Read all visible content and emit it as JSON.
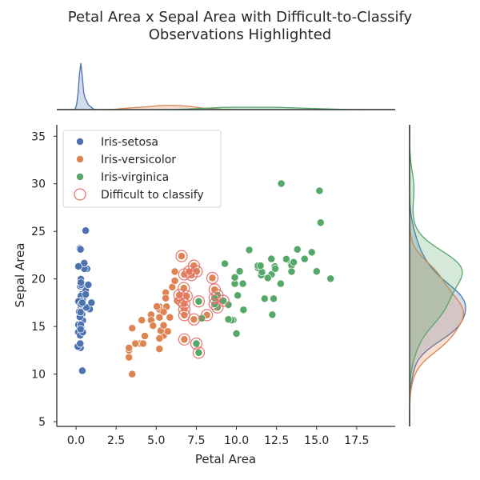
{
  "chart_data": {
    "type": "scatter",
    "title_line1": "Petal Area x Sepal Area with Difficult-to-Classify",
    "title_line2": "Observations Highlighted",
    "xlabel": "Petal Area",
    "ylabel": "Sepal Area",
    "xlim": [
      -1.2,
      19.9
    ],
    "ylim": [
      4.5,
      36.2
    ],
    "xticks": [
      0.0,
      2.5,
      5.0,
      7.5,
      10.0,
      12.5,
      15.0,
      17.5
    ],
    "yticks": [
      5,
      10,
      15,
      20,
      25,
      30,
      35
    ],
    "legend_position": "top-left",
    "series": [
      {
        "name": "Iris-setosa",
        "color": "#4c72b0",
        "points": [
          [
            0.28,
            17.85
          ],
          [
            0.28,
            14.7
          ],
          [
            0.26,
            15.04
          ],
          [
            0.3,
            14.26
          ],
          [
            0.28,
            18.0
          ],
          [
            0.68,
            21.06
          ],
          [
            0.42,
            15.64
          ],
          [
            0.3,
            17.0
          ],
          [
            0.28,
            12.76
          ],
          [
            0.15,
            15.19
          ],
          [
            0.3,
            19.98
          ],
          [
            0.32,
            16.32
          ],
          [
            0.14,
            14.4
          ],
          [
            0.11,
            12.9
          ],
          [
            0.24,
            23.2
          ],
          [
            0.6,
            25.08
          ],
          [
            0.52,
            21.06
          ],
          [
            0.42,
            17.85
          ],
          [
            0.51,
            21.66
          ],
          [
            0.45,
            19.38
          ],
          [
            0.34,
            18.36
          ],
          [
            0.6,
            18.87
          ],
          [
            0.2,
            16.56
          ],
          [
            0.85,
            16.83
          ],
          [
            0.38,
            16.32
          ],
          [
            0.32,
            15.0
          ],
          [
            0.64,
            17.0
          ],
          [
            0.3,
            18.2
          ],
          [
            0.28,
            17.68
          ],
          [
            0.32,
            14.88
          ],
          [
            0.32,
            14.88
          ],
          [
            0.6,
            18.36
          ],
          [
            0.15,
            21.32
          ],
          [
            0.28,
            23.1
          ],
          [
            0.3,
            15.19
          ],
          [
            0.24,
            16.0
          ],
          [
            0.26,
            19.25
          ],
          [
            0.15,
            17.64
          ],
          [
            0.26,
            13.2
          ],
          [
            0.3,
            17.34
          ],
          [
            0.39,
            17.5
          ],
          [
            0.39,
            10.35
          ],
          [
            0.26,
            14.08
          ],
          [
            0.96,
            17.5
          ],
          [
            0.76,
            19.38
          ],
          [
            0.42,
            14.4
          ],
          [
            0.32,
            19.38
          ],
          [
            0.28,
            14.72
          ],
          [
            0.3,
            19.61
          ],
          [
            0.28,
            16.5
          ]
        ]
      },
      {
        "name": "Iris-versicolor",
        "color": "#dd8452",
        "points": [
          [
            6.58,
            22.4
          ],
          [
            6.75,
            20.48
          ],
          [
            7.35,
            21.39
          ],
          [
            5.2,
            12.65
          ],
          [
            6.9,
            18.2
          ],
          [
            5.85,
            15.96
          ],
          [
            7.52,
            20.79
          ],
          [
            3.3,
            11.76
          ],
          [
            6.0,
            19.14
          ],
          [
            5.46,
            14.04
          ],
          [
            3.5,
            10.0
          ],
          [
            6.3,
            17.7
          ],
          [
            4.0,
            13.2
          ],
          [
            6.58,
            17.69
          ],
          [
            4.68,
            16.24
          ],
          [
            6.16,
            20.77
          ],
          [
            6.75,
            16.8
          ],
          [
            4.1,
            15.66
          ],
          [
            6.75,
            13.64
          ],
          [
            4.29,
            14.0
          ],
          [
            8.64,
            18.88
          ],
          [
            5.2,
            17.08
          ],
          [
            7.35,
            15.75
          ],
          [
            5.64,
            17.08
          ],
          [
            5.59,
            18.56
          ],
          [
            6.16,
            19.8
          ],
          [
            6.72,
            19.04
          ],
          [
            8.5,
            20.1
          ],
          [
            6.75,
            17.4
          ],
          [
            3.5,
            14.82
          ],
          [
            4.18,
            13.2
          ],
          [
            3.7,
            13.2
          ],
          [
            4.68,
            15.66
          ],
          [
            8.16,
            16.2
          ],
          [
            6.75,
            16.2
          ],
          [
            7.2,
            20.4
          ],
          [
            7.05,
            20.77
          ],
          [
            5.72,
            14.49
          ],
          [
            5.2,
            16.8
          ],
          [
            5.2,
            13.75
          ],
          [
            5.28,
            14.56
          ],
          [
            6.44,
            18.3
          ],
          [
            4.8,
            15.08
          ],
          [
            3.3,
            12.5
          ],
          [
            5.46,
            15.12
          ],
          [
            5.04,
            17.1
          ],
          [
            5.46,
            16.53
          ],
          [
            5.59,
            17.98
          ],
          [
            3.3,
            12.75
          ],
          [
            5.2,
            15.96
          ]
        ]
      },
      {
        "name": "Iris-virginica",
        "color": "#55a868",
        "points": [
          [
            15.0,
            20.79
          ],
          [
            9.69,
            15.66
          ],
          [
            12.39,
            21.3
          ],
          [
            10.08,
            18.27
          ],
          [
            12.76,
            19.5
          ],
          [
            14.7,
            22.8
          ],
          [
            7.65,
            12.25
          ],
          [
            11.34,
            21.17
          ],
          [
            10.44,
            16.75
          ],
          [
            15.25,
            25.92
          ],
          [
            10.2,
            20.8
          ],
          [
            9.5,
            17.28
          ],
          [
            11.55,
            20.4
          ],
          [
            10.0,
            14.25
          ],
          [
            12.24,
            16.24
          ],
          [
            12.19,
            20.48
          ],
          [
            9.9,
            19.5
          ],
          [
            15.18,
            29.26
          ],
          [
            15.87,
            20.02
          ],
          [
            7.5,
            13.2
          ],
          [
            13.11,
            22.08
          ],
          [
            9.8,
            15.68
          ],
          [
            13.4,
            21.56
          ],
          [
            8.82,
            17.01
          ],
          [
            12.18,
            22.11
          ],
          [
            10.8,
            23.04
          ],
          [
            8.64,
            17.36
          ],
          [
            8.82,
            18.3
          ],
          [
            11.76,
            17.92
          ],
          [
            9.28,
            21.6
          ],
          [
            11.59,
            20.72
          ],
          [
            12.8,
            30.02
          ],
          [
            12.32,
            17.92
          ],
          [
            7.65,
            17.64
          ],
          [
            7.84,
            15.86
          ],
          [
            13.8,
            23.1
          ],
          [
            13.44,
            21.42
          ],
          [
            9.9,
            20.16
          ],
          [
            8.64,
            18.0
          ],
          [
            11.34,
            21.39
          ],
          [
            13.44,
            20.77
          ],
          [
            11.5,
            21.39
          ],
          [
            9.69,
            15.66
          ],
          [
            13.57,
            21.76
          ],
          [
            14.25,
            22.11
          ],
          [
            11.96,
            20.1
          ],
          [
            9.5,
            15.75
          ],
          [
            10.4,
            19.5
          ],
          [
            12.42,
            21.08
          ],
          [
            9.18,
            17.7
          ]
        ]
      }
    ],
    "highlight": {
      "name": "Difficult to classify",
      "color": "#e8736f",
      "points": [
        [
          6.58,
          22.4
        ],
        [
          6.75,
          20.48
        ],
        [
          7.35,
          21.39
        ],
        [
          7.52,
          20.79
        ],
        [
          7.2,
          20.4
        ],
        [
          7.05,
          20.77
        ],
        [
          8.5,
          20.1
        ],
        [
          6.72,
          19.04
        ],
        [
          8.64,
          18.88
        ],
        [
          6.58,
          17.69
        ],
        [
          6.75,
          17.4
        ],
        [
          6.44,
          18.3
        ],
        [
          6.9,
          18.2
        ],
        [
          6.75,
          16.8
        ],
        [
          6.75,
          16.2
        ],
        [
          7.35,
          15.75
        ],
        [
          8.16,
          16.2
        ],
        [
          6.75,
          13.64
        ],
        [
          7.5,
          13.2
        ],
        [
          7.65,
          12.25
        ],
        [
          7.65,
          17.64
        ],
        [
          8.64,
          17.36
        ],
        [
          8.82,
          17.01
        ],
        [
          8.82,
          18.3
        ],
        [
          8.64,
          18.0
        ],
        [
          9.18,
          17.7
        ]
      ]
    }
  }
}
